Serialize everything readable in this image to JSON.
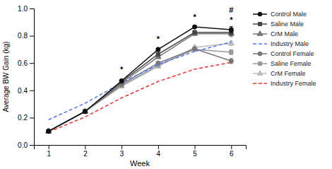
{
  "chart_data": {
    "type": "line",
    "xlabel": "Week",
    "ylabel": "Average BW Gain (kg)",
    "x": [
      1,
      2,
      3,
      4,
      5,
      6
    ],
    "xlim": [
      0.6,
      6.4
    ],
    "xticks": [
      1,
      2,
      3,
      4,
      5,
      6
    ],
    "ylim": [
      0.0,
      1.0
    ],
    "yticks": [
      {
        "value": 0.0,
        "label": "0.0"
      },
      0.2,
      0.4,
      0.6,
      0.8,
      {
        "value": 1.0,
        "label": "1.0"
      }
    ],
    "legend": "right",
    "series": [
      {
        "name": "Control Male",
        "color": "#111111",
        "marker": "circle",
        "line_style": "solid",
        "values": [
          0.1,
          0.245,
          0.47,
          0.7,
          0.865,
          0.845
        ],
        "errors": [
          0.003,
          0.006,
          0.008,
          0.012,
          0.012,
          0.022
        ]
      },
      {
        "name": "Saline Male",
        "color": "#444444",
        "marker": "square",
        "line_style": "solid",
        "values": [
          0.1,
          0.245,
          0.465,
          0.665,
          0.825,
          0.825
        ],
        "errors": [
          0.003,
          0.006,
          0.008,
          0.012,
          0.012,
          0.022
        ]
      },
      {
        "name": "CrM Male",
        "color": "#777777",
        "marker": "triangle",
        "line_style": "solid",
        "values": [
          0.1,
          0.245,
          0.455,
          0.645,
          0.815,
          0.815
        ],
        "errors": [
          0.003,
          0.006,
          0.008,
          0.012,
          0.012,
          0.022
        ]
      },
      {
        "name": "Industry Male",
        "color": "#5577ff",
        "marker": "none",
        "line_style": "dashed",
        "values": [
          0.185,
          0.305,
          0.455,
          0.59,
          0.685,
          0.755
        ]
      },
      {
        "name": "Control Female",
        "color": "#777777",
        "marker": "circle",
        "line_style": "solid",
        "values": [
          0.1,
          0.245,
          0.445,
          0.6,
          0.705,
          0.615
        ],
        "errors": [
          0.003,
          0.006,
          0.008,
          0.01,
          0.01,
          0.018
        ]
      },
      {
        "name": "Saline Female",
        "color": "#999999",
        "marker": "square",
        "line_style": "solid",
        "values": [
          0.1,
          0.245,
          0.435,
          0.585,
          0.7,
          0.68
        ],
        "errors": [
          0.003,
          0.006,
          0.008,
          0.01,
          0.01,
          0.018
        ]
      },
      {
        "name": "CrM Female",
        "color": "#bbbbbb",
        "marker": "triangle",
        "line_style": "solid",
        "values": [
          0.1,
          0.245,
          0.43,
          0.575,
          0.715,
          0.745
        ],
        "errors": [
          0.003,
          0.006,
          0.008,
          0.01,
          0.01,
          0.018
        ]
      },
      {
        "name": "Industry Female",
        "color": "#ee3333",
        "marker": "none",
        "line_style": "dashed",
        "values": [
          0.095,
          0.205,
          0.345,
          0.465,
          0.555,
          0.605
        ]
      }
    ],
    "annotations": [
      {
        "text": "*",
        "x": 3,
        "y": 0.535
      },
      {
        "text": "*",
        "x": 4,
        "y": 0.755
      },
      {
        "text": "*",
        "x": 5,
        "y": 0.915
      },
      {
        "text": "*",
        "x": 6,
        "y": 0.895
      },
      {
        "text": "#",
        "x": 6,
        "y": 0.97
      }
    ]
  }
}
